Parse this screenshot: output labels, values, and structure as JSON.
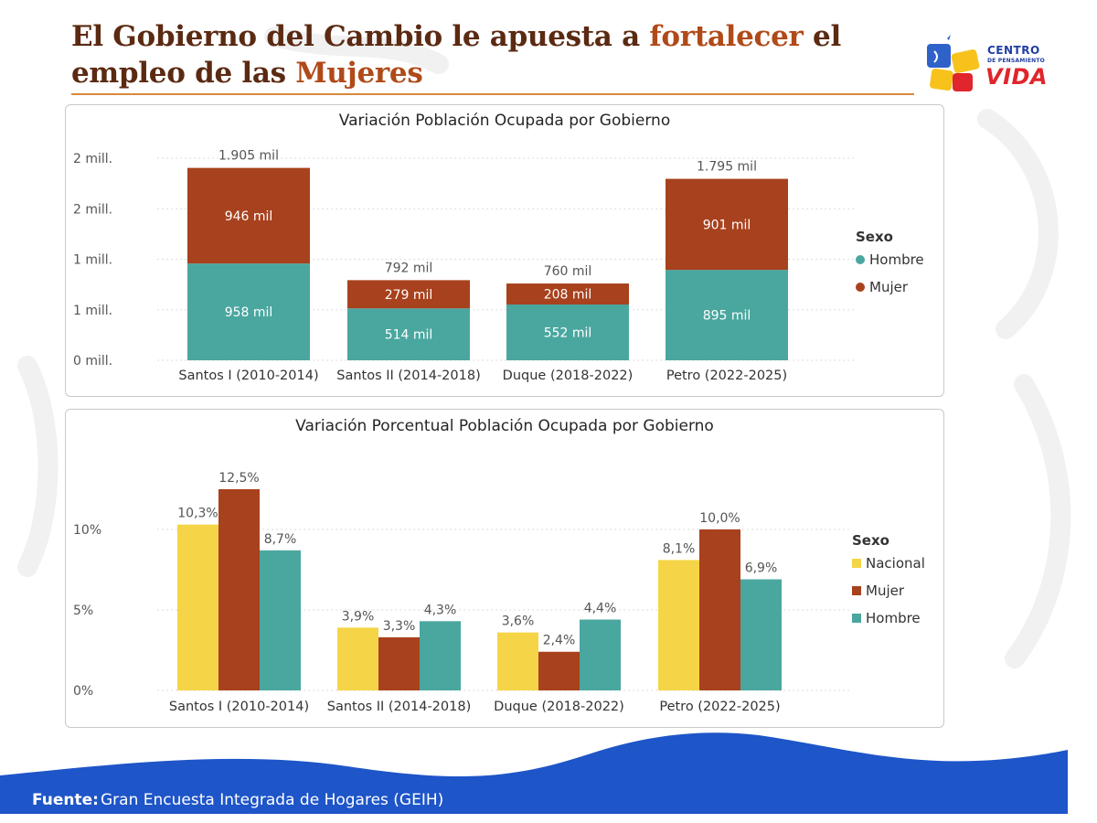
{
  "header": {
    "title_part1": "El Gobierno del Cambio le apuesta a ",
    "title_highlight1": "fortalecer",
    "title_part2": " el empleo de las ",
    "title_highlight2": "Mujeres"
  },
  "logo": {
    "line1": "CENTRO",
    "line2": "DE PENSAMIENTO",
    "line3": "VIDA"
  },
  "footer": {
    "label": "Fuente:",
    "text": "Gran Encuesta Integrada de Hogares (GEIH)"
  },
  "colors": {
    "hombre": "#4aa79f",
    "mujer": "#a8411d",
    "nacional": "#f5d547",
    "footer_bg": "#1e55c8"
  },
  "chart_data": [
    {
      "type": "bar",
      "stacked": true,
      "title": "Variación Población Ocupada por Gobierno",
      "categories": [
        "Santos I (2010-2014)",
        "Santos II (2014-2018)",
        "Duque (2018-2022)",
        "Petro (2022-2025)"
      ],
      "series": [
        {
          "name": "Hombre",
          "values": [
            958,
            514,
            552,
            895
          ],
          "labels": [
            "958 mil",
            "514 mil",
            "552 mil",
            "895 mil"
          ]
        },
        {
          "name": "Mujer",
          "values": [
            946,
            279,
            208,
            901
          ],
          "labels": [
            "946 mil",
            "279 mil",
            "208 mil",
            "901 mil"
          ]
        }
      ],
      "totals": [
        "1.905 mil",
        "792 mil",
        "760 mil",
        "1.795 mil"
      ],
      "yticks": [
        0,
        500,
        1000,
        1500,
        2000
      ],
      "ytick_labels": [
        "0 mill.",
        "1 mill.",
        "1 mill.",
        "2 mill.",
        "2 mill."
      ],
      "ylim": [
        0,
        2000
      ],
      "legend_title": "Sexo",
      "legend_position": "right",
      "grid": true
    },
    {
      "type": "bar",
      "stacked": false,
      "title": "Variación Porcentual Población Ocupada por Gobierno",
      "categories": [
        "Santos I (2010-2014)",
        "Santos II (2014-2018)",
        "Duque (2018-2022)",
        "Petro (2022-2025)"
      ],
      "series": [
        {
          "name": "Nacional",
          "values": [
            10.3,
            3.9,
            3.6,
            8.1
          ],
          "labels": [
            "10,3%",
            "3,9%",
            "3,6%",
            "8,1%"
          ]
        },
        {
          "name": "Mujer",
          "values": [
            12.5,
            3.3,
            2.4,
            10.0
          ],
          "labels": [
            "12,5%",
            "3,3%",
            "2,4%",
            "10,0%"
          ]
        },
        {
          "name": "Hombre",
          "values": [
            8.7,
            4.3,
            4.4,
            6.9
          ],
          "labels": [
            "8,7%",
            "4,3%",
            "4,4%",
            "6,9%"
          ]
        }
      ],
      "yticks": [
        0,
        5,
        10
      ],
      "ytick_labels": [
        "0%",
        "5%",
        "10%"
      ],
      "ylim": [
        0,
        14.2
      ],
      "legend_title": "Sexo",
      "legend_position": "right",
      "grid": true
    }
  ]
}
